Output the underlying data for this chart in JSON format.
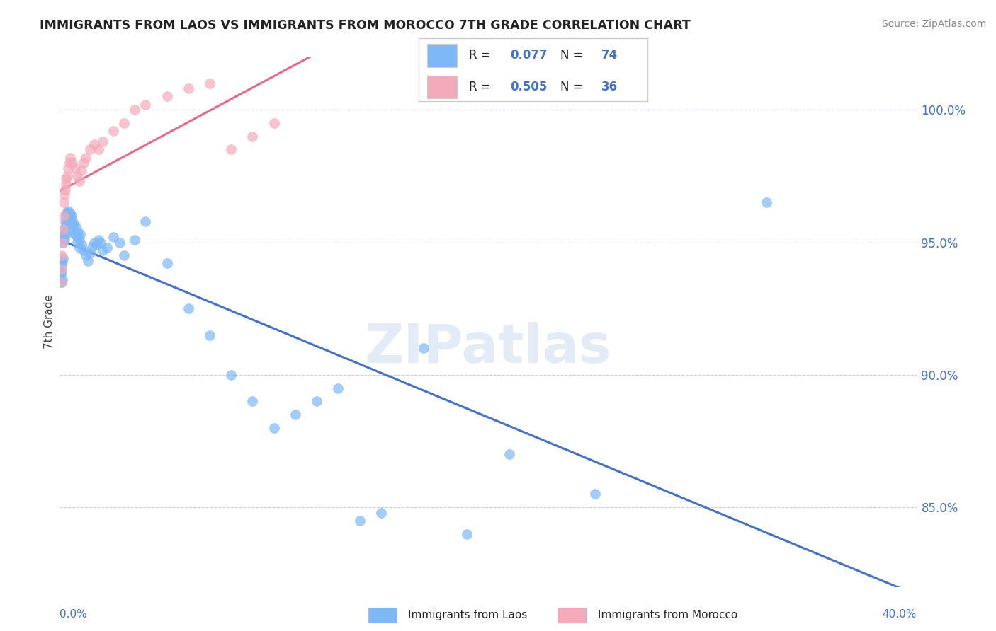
{
  "title": "IMMIGRANTS FROM LAOS VS IMMIGRANTS FROM MOROCCO 7TH GRADE CORRELATION CHART",
  "source": "Source: ZipAtlas.com",
  "ylabel": "7th Grade",
  "xlim": [
    0,
    40
  ],
  "ylim": [
    82,
    102
  ],
  "laos_color": "#7EB8F7",
  "morocco_color": "#F4AABB",
  "laos_line_color": "#4472C4",
  "morocco_line_color": "#E8688A",
  "laos_R": 0.077,
  "laos_N": 74,
  "morocco_R": 0.505,
  "morocco_N": 36,
  "legend_label_laos": "Immigrants from Laos",
  "legend_label_morocco": "Immigrants from Morocco",
  "right_yticks": [
    85,
    90,
    95,
    100
  ],
  "laos_x": [
    0.05,
    0.08,
    0.1,
    0.12,
    0.15,
    0.18,
    0.2,
    0.22,
    0.25,
    0.28,
    0.3,
    0.32,
    0.35,
    0.38,
    0.4,
    0.42,
    0.45,
    0.48,
    0.5,
    0.55,
    0.6,
    0.65,
    0.7,
    0.75,
    0.8,
    0.85,
    0.9,
    0.95,
    1.0,
    1.1,
    1.2,
    1.3,
    1.4,
    1.5,
    1.6,
    1.7,
    1.8,
    1.9,
    2.0,
    2.2,
    2.5,
    2.8,
    3.0,
    3.5,
    4.0,
    5.0,
    6.0,
    7.0,
    8.0,
    9.0,
    10.0,
    11.0,
    12.0,
    13.0,
    14.0,
    15.0,
    17.0,
    19.0,
    21.0,
    25.0,
    0.06,
    0.09,
    0.13,
    0.17,
    0.23,
    0.27,
    0.33,
    0.43,
    0.53,
    0.63,
    0.73,
    0.83,
    0.93,
    33.0
  ],
  "laos_y": [
    93.8,
    94.1,
    93.5,
    94.3,
    95.0,
    95.2,
    95.5,
    95.3,
    95.8,
    95.6,
    96.0,
    95.7,
    96.1,
    95.9,
    96.2,
    96.0,
    95.8,
    96.1,
    95.9,
    96.0,
    95.5,
    95.7,
    95.3,
    95.6,
    95.2,
    95.4,
    95.1,
    95.3,
    94.9,
    94.7,
    94.5,
    94.3,
    94.6,
    94.8,
    95.0,
    94.9,
    95.1,
    95.0,
    94.7,
    94.8,
    95.2,
    95.0,
    94.5,
    95.1,
    95.8,
    94.2,
    92.5,
    91.5,
    90.0,
    89.0,
    88.0,
    88.5,
    89.0,
    89.5,
    84.5,
    84.8,
    91.0,
    84.0,
    87.0,
    85.5,
    93.9,
    94.2,
    93.6,
    94.4,
    95.1,
    95.3,
    96.1,
    96.0,
    95.9,
    95.6,
    95.3,
    95.0,
    94.8,
    96.5
  ],
  "morocco_x": [
    0.05,
    0.08,
    0.1,
    0.12,
    0.15,
    0.18,
    0.2,
    0.22,
    0.25,
    0.28,
    0.3,
    0.35,
    0.4,
    0.45,
    0.5,
    0.6,
    0.7,
    0.8,
    0.9,
    1.0,
    1.1,
    1.2,
    1.4,
    1.6,
    1.8,
    2.0,
    2.5,
    3.0,
    3.5,
    4.0,
    5.0,
    6.0,
    7.0,
    8.0,
    9.0,
    10.0
  ],
  "morocco_y": [
    93.5,
    94.0,
    94.5,
    95.0,
    95.5,
    96.0,
    96.5,
    96.8,
    97.0,
    97.2,
    97.4,
    97.5,
    97.8,
    98.0,
    98.2,
    98.0,
    97.8,
    97.5,
    97.3,
    97.7,
    98.0,
    98.2,
    98.5,
    98.7,
    98.5,
    98.8,
    99.2,
    99.5,
    100.0,
    100.2,
    100.5,
    100.8,
    101.0,
    98.5,
    99.0,
    99.5
  ]
}
